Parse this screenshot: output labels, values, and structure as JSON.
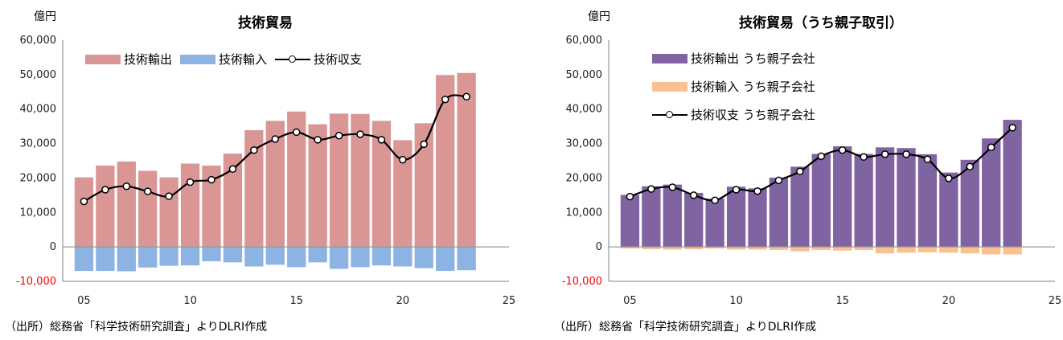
{
  "chart_data": [
    {
      "type": "bar",
      "title": "技術貿易",
      "unit_label": "億円",
      "source": "（出所）総務省「科学技術研究調査」よりDLRI作成",
      "ylim": [
        -10000,
        60000
      ],
      "yticks": [
        "-10,000",
        "0",
        "10,000",
        "20,000",
        "30,000",
        "40,000",
        "50,000",
        "60,000"
      ],
      "xlim": [
        4,
        25
      ],
      "xticks": [
        "05",
        "10",
        "15",
        "20",
        "25"
      ],
      "x": [
        5,
        6,
        7,
        8,
        9,
        10,
        11,
        12,
        13,
        14,
        15,
        16,
        17,
        18,
        19,
        20,
        21,
        22,
        23
      ],
      "legend_position": "top",
      "series": [
        {
          "name": "技術輸出",
          "kind": "bar",
          "color": "#d99694",
          "values": [
            20300,
            23700,
            24900,
            22200,
            20300,
            24300,
            23700,
            27200,
            34000,
            36700,
            39400,
            35700,
            38800,
            38700,
            36700,
            31100,
            36000,
            50000,
            50600
          ]
        },
        {
          "name": "技術輸入",
          "kind": "bar",
          "color": "#8db3e2",
          "values": [
            -7100,
            -7100,
            -7200,
            -6100,
            -5600,
            -5500,
            -4300,
            -4600,
            -5800,
            -5300,
            -6000,
            -4600,
            -6500,
            -6000,
            -5500,
            -5800,
            -6300,
            -7100,
            -6900
          ]
        },
        {
          "name": "技術収支",
          "kind": "line",
          "color": "#000000",
          "values": [
            13200,
            16600,
            17600,
            16100,
            14700,
            18800,
            19500,
            22600,
            28100,
            31300,
            33300,
            31100,
            32300,
            32700,
            31100,
            25300,
            29800,
            42800,
            43600
          ]
        }
      ]
    },
    {
      "type": "bar",
      "title": "技術貿易（うち親子取引）",
      "unit_label": "億円",
      "source": "（出所）総務省「科学技術研究調査」よりDLRI作成",
      "ylim": [
        -10000,
        60000
      ],
      "yticks": [
        "-10,000",
        "0",
        "10,000",
        "20,000",
        "30,000",
        "40,000",
        "50,000",
        "60,000"
      ],
      "xlim": [
        4,
        25
      ],
      "xticks": [
        "05",
        "10",
        "15",
        "20",
        "25"
      ],
      "x": [
        5,
        6,
        7,
        8,
        9,
        10,
        11,
        12,
        13,
        14,
        15,
        16,
        17,
        18,
        19,
        20,
        21,
        22,
        23
      ],
      "legend_position": "top-left",
      "series": [
        {
          "name": "技術輸出 うち親子会社",
          "kind": "bar",
          "color": "#8064a2",
          "values": [
            15200,
            17700,
            18200,
            15800,
            14100,
            17600,
            17100,
            20200,
            23400,
            27100,
            29300,
            27100,
            29000,
            28800,
            27000,
            21700,
            25400,
            31600,
            37000
          ]
        },
        {
          "name": "技術輸入 うち親子会社",
          "kind": "bar",
          "color": "#fac090",
          "values": [
            -600,
            -800,
            -900,
            -800,
            -600,
            -900,
            -900,
            -1000,
            -1400,
            -1000,
            -1200,
            -1000,
            -2000,
            -1800,
            -1700,
            -1800,
            -2000,
            -2300,
            -2300
          ]
        },
        {
          "name": "技術収支 うち親子会社",
          "kind": "line",
          "color": "#000000",
          "values": [
            14600,
            16800,
            17300,
            15000,
            13500,
            16600,
            16200,
            19300,
            21900,
            26300,
            28100,
            26100,
            26900,
            26900,
            25400,
            19900,
            23300,
            28900,
            34600
          ]
        }
      ]
    }
  ]
}
